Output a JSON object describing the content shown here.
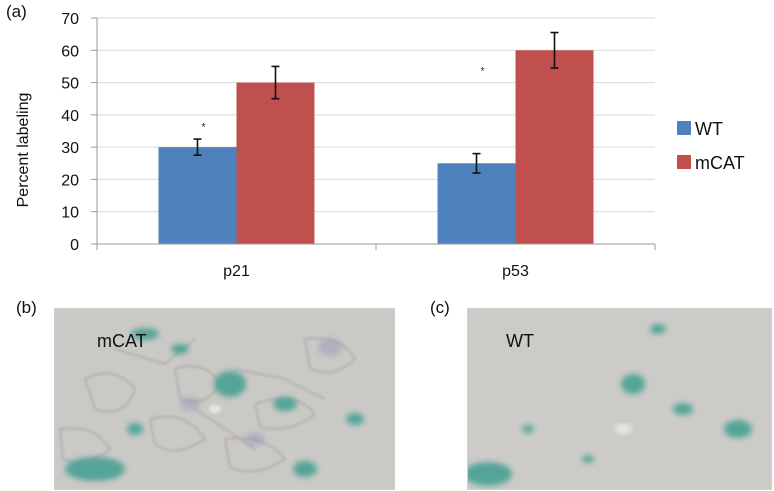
{
  "panels": {
    "a": "(a)",
    "b": "(b)",
    "c": "(c)"
  },
  "chart_data": {
    "type": "bar",
    "categories": [
      "p21",
      "p53"
    ],
    "series": [
      {
        "name": "WT",
        "values": [
          30,
          25
        ],
        "errors": [
          2.5,
          3
        ],
        "color": "#4f81bd"
      },
      {
        "name": "mCAT",
        "values": [
          50,
          60
        ],
        "errors": [
          5,
          5.5
        ],
        "color": "#c0504d"
      }
    ],
    "significance_marks": [
      "*",
      "*"
    ],
    "title": "",
    "xlabel": "",
    "ylabel": "Percent labeling",
    "ylim": [
      0,
      70
    ],
    "yticks": [
      0,
      10,
      20,
      30,
      40,
      50,
      60,
      70
    ],
    "grid": true,
    "legend_position": "right"
  },
  "images": {
    "left_label": "mCAT",
    "right_label": "WT"
  },
  "colors": {
    "grid": "#d9d9d9",
    "photo_bg": "#cbc9c6",
    "stain": "#3f9e8f"
  }
}
